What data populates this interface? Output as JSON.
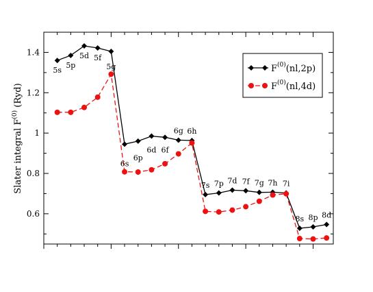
{
  "chart_data": {
    "type": "line",
    "title": "",
    "xlabel": "",
    "ylabel": "Slater integral F(0) (Ryd)",
    "ylabel_parts": {
      "base": "Slater integral F",
      "sup": "(0)",
      "unit": " (Ryd)"
    },
    "ylim": [
      0.45,
      1.5
    ],
    "yticks": [
      0.6,
      0.8,
      1.0,
      1.2,
      1.4
    ],
    "ytick_labels": [
      "0.6",
      "0.8",
      "1",
      "1.2",
      "1.4"
    ],
    "xlim": [
      0,
      21.5
    ],
    "grid": false,
    "legend_position": "top-right",
    "x": [
      1,
      2,
      3,
      4,
      5,
      6,
      7,
      8,
      9,
      10,
      11,
      12,
      13,
      14,
      15,
      16,
      17,
      18,
      19,
      20,
      21
    ],
    "point_labels": [
      "5s",
      "5p",
      "5d",
      "5f",
      "5g",
      "6s",
      "6p",
      "6d",
      "6f",
      "6g",
      "6h",
      "7s",
      "7p",
      "7d",
      "7f",
      "7g",
      "7h",
      "7i",
      "8s",
      "8p",
      "8d"
    ],
    "series": [
      {
        "name": "F(0)(nl,2p)",
        "legend": {
          "base": "F",
          "sup": "(0)",
          "rest": "(nl,2p)"
        },
        "color": "#000000",
        "line_style": "solid",
        "marker": "diamond",
        "values": [
          1.36,
          1.385,
          1.432,
          1.422,
          1.405,
          0.945,
          0.96,
          0.985,
          0.979,
          0.965,
          0.963,
          0.695,
          0.703,
          0.717,
          0.714,
          0.706,
          0.707,
          0.703,
          0.528,
          0.535,
          0.547
        ]
      },
      {
        "name": "F(0)(nl,4d)",
        "legend": {
          "base": "F",
          "sup": "(0)",
          "rest": "(nl,4d)"
        },
        "color": "#ee1111",
        "line_style": "dashed",
        "marker": "circle",
        "values": [
          1.103,
          1.103,
          1.127,
          1.178,
          1.292,
          0.808,
          0.807,
          0.818,
          0.848,
          0.897,
          0.951,
          0.612,
          0.609,
          0.618,
          0.635,
          0.662,
          0.693,
          0.699,
          0.477,
          0.475,
          0.48
        ]
      }
    ]
  }
}
